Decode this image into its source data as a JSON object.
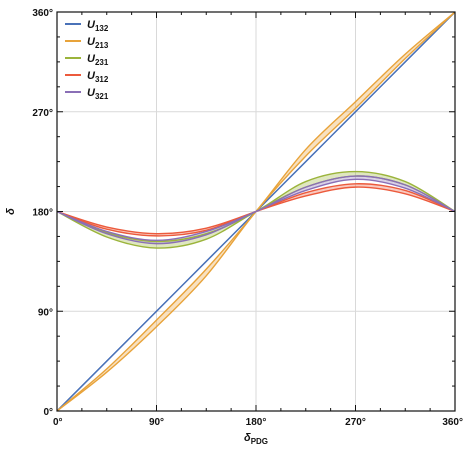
{
  "chart_data": {
    "type": "line",
    "title": "",
    "xlabel": "δ",
    "xlabel_sub": "PDG",
    "ylabel": "δ",
    "xlim": [
      0,
      360
    ],
    "ylim": [
      0,
      360
    ],
    "xticks": [
      0,
      90,
      180,
      270,
      360
    ],
    "yticks": [
      0,
      90,
      180,
      270,
      360
    ],
    "xtick_labels": [
      "0°",
      "90°",
      "180°",
      "270°",
      "360°"
    ],
    "ytick_labels": [
      "0°",
      "90°",
      "180°",
      "270°",
      "360°"
    ],
    "grid": true,
    "legend_position": "top-left",
    "series": [
      {
        "name": "U",
        "sub": "132",
        "color": "#4a72b8",
        "x": [
          0,
          45,
          90,
          135,
          180,
          225,
          270,
          315,
          360
        ],
        "upper": [
          0,
          45,
          90,
          135,
          180,
          225,
          270,
          315,
          360
        ],
        "lower": [
          0,
          45,
          90,
          135,
          180,
          225,
          270,
          315,
          360
        ]
      },
      {
        "name": "U",
        "sub": "213",
        "color": "#e8a33a",
        "x": [
          0,
          45,
          90,
          135,
          180,
          225,
          270,
          315,
          360
        ],
        "upper": [
          0,
          38,
          82,
          128,
          180,
          236,
          279,
          322,
          360
        ],
        "lower": [
          0,
          35,
          76,
          122,
          180,
          230,
          273,
          318,
          360
        ]
      },
      {
        "name": "U",
        "sub": "231",
        "color": "#9bb43b",
        "x": [
          0,
          45,
          90,
          135,
          180,
          225,
          270,
          315,
          360
        ],
        "upper": [
          180,
          161,
          153,
          160,
          180,
          207,
          216,
          207,
          180
        ],
        "lower": [
          180,
          157,
          147,
          155,
          180,
          202,
          212,
          204,
          180
        ]
      },
      {
        "name": "U",
        "sub": "312",
        "color": "#ec5a3c",
        "x": [
          0,
          45,
          90,
          135,
          180,
          225,
          270,
          315,
          360
        ],
        "upper": [
          180,
          166,
          160,
          165,
          180,
          197,
          205,
          199,
          180
        ],
        "lower": [
          180,
          164,
          158,
          163,
          180,
          194,
          202,
          196,
          180
        ]
      },
      {
        "name": "U",
        "sub": "321",
        "color": "#8a6fb6",
        "x": [
          0,
          45,
          90,
          135,
          180,
          225,
          270,
          315,
          360
        ],
        "upper": [
          180,
          162,
          154,
          162,
          180,
          202,
          212,
          204,
          180
        ],
        "lower": [
          180,
          160,
          151,
          159,
          180,
          199,
          209,
          201,
          180
        ]
      }
    ]
  }
}
